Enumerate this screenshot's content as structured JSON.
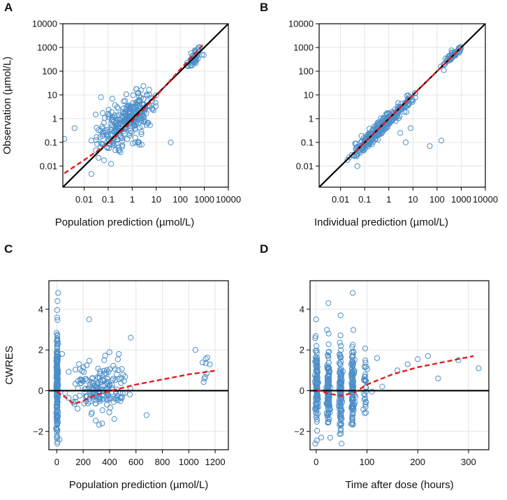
{
  "colors": {
    "points": "#4d8fc8",
    "identity": "#000000",
    "smooth": "#e31a1c",
    "grid": "#e4e4e4",
    "frame": "#000000"
  },
  "chart_data": [
    {
      "panel": "A",
      "type": "scatter",
      "xscale": "log",
      "yscale": "log",
      "xlabel": "Population prediction (µmol/L)",
      "ylabel": "Observation (µmol/L)",
      "xlim": [
        0.0013,
        10000
      ],
      "ylim": [
        0.0013,
        10000
      ],
      "xticks": [
        0.01,
        0.1,
        1,
        10,
        100,
        1000,
        10000
      ],
      "xtick_labels": [
        "0.01",
        "0.1",
        "1",
        "10",
        "100",
        "1000",
        "10000"
      ],
      "yticks": [
        0.01,
        0.1,
        1,
        10,
        100,
        1000,
        10000
      ],
      "ytick_labels": [
        "0.01",
        "0.1",
        "1",
        "10",
        "100",
        "1000",
        "10000"
      ],
      "reference_line": {
        "type": "identity",
        "color": "#000000"
      },
      "trend_line": {
        "color": "#e31a1c",
        "style": "dashed",
        "points": [
          [
            0.0015,
            0.005
          ],
          [
            0.01,
            0.018
          ],
          [
            0.1,
            0.09
          ],
          [
            1,
            0.8
          ],
          [
            10,
            9
          ],
          [
            100,
            120
          ],
          [
            1000,
            1500
          ]
        ]
      },
      "clusters": [
        {
          "x_log": -1.0,
          "y_log": -0.5,
          "sx": 0.35,
          "sy": 0.55,
          "corr": 0.4,
          "n": 70
        },
        {
          "x_log": 0.0,
          "y_log": 0.0,
          "sx": 0.45,
          "sy": 0.55,
          "corr": 0.6,
          "n": 230
        },
        {
          "x_log": 2.6,
          "y_log": 2.6,
          "sx": 0.2,
          "sy": 0.25,
          "corr": 0.8,
          "n": 50
        }
      ],
      "extra_points": [
        [
          0.0015,
          0.14
        ],
        [
          0.004,
          0.4
        ],
        [
          0.02,
          0.12
        ],
        [
          0.05,
          8
        ],
        [
          40,
          0.1
        ],
        [
          2,
          0.08
        ],
        [
          0.03,
          1.5
        ]
      ]
    },
    {
      "panel": "B",
      "type": "scatter",
      "xscale": "log",
      "yscale": "log",
      "xlabel": "Individual prediction (µmol/L)",
      "ylabel": "",
      "xlim": [
        0.0013,
        10000
      ],
      "ylim": [
        0.0013,
        10000
      ],
      "xticks": [
        0.01,
        0.1,
        1,
        10,
        100,
        1000,
        10000
      ],
      "xtick_labels": [
        "0.01",
        "0.1",
        "1",
        "10",
        "100",
        "1000",
        "10000"
      ],
      "yticks": [
        0.01,
        0.1,
        1,
        10,
        100,
        1000,
        10000
      ],
      "ytick_labels": [
        "0.01",
        "0.1",
        "1",
        "10",
        "100",
        "1000",
        "10000"
      ],
      "reference_line": {
        "type": "identity",
        "color": "#000000"
      },
      "trend_line": {
        "color": "#e31a1c",
        "style": "dashed",
        "points": [
          [
            0.04,
            0.04
          ],
          [
            0.1,
            0.1
          ],
          [
            1,
            1
          ],
          [
            10,
            10
          ],
          [
            100,
            100
          ],
          [
            1000,
            1000
          ]
        ]
      },
      "clusters": [
        {
          "x_log": -1.0,
          "y_log": -1.05,
          "sx": 0.3,
          "sy": 0.32,
          "corr": 0.85,
          "n": 80
        },
        {
          "x_log": 0.0,
          "y_log": -0.05,
          "sx": 0.45,
          "sy": 0.45,
          "corr": 0.93,
          "n": 230
        },
        {
          "x_log": 2.6,
          "y_log": 2.6,
          "sx": 0.2,
          "sy": 0.22,
          "corr": 0.92,
          "n": 55
        }
      ],
      "extra_points": [
        [
          0.05,
          0.01
        ],
        [
          0.03,
          0.03
        ],
        [
          50,
          0.07
        ],
        [
          150,
          0.12
        ],
        [
          5,
          0.1
        ],
        [
          8,
          0.4
        ],
        [
          3,
          0.25
        ]
      ]
    },
    {
      "panel": "C",
      "type": "scatter",
      "xscale": "linear",
      "yscale": "linear",
      "xlabel": "Population prediction (µmol/L)",
      "ylabel": "CWRES",
      "xlim": [
        -60,
        1300
      ],
      "ylim": [
        -2.9,
        5.4
      ],
      "xticks": [
        0,
        200,
        400,
        600,
        800,
        1000,
        1200
      ],
      "xtick_labels": [
        "0",
        "200",
        "400",
        "600",
        "800",
        "1000",
        "1200"
      ],
      "yticks": [
        -2,
        0,
        2,
        4
      ],
      "ytick_labels": [
        "−2",
        "0",
        "2",
        "4"
      ],
      "reference_line": {
        "type": "horizontal",
        "y": 0,
        "color": "#000000"
      },
      "trend_line": {
        "color": "#e31a1c",
        "style": "dashed",
        "points": [
          [
            0,
            -0.05
          ],
          [
            60,
            -0.3
          ],
          [
            130,
            -0.65
          ],
          [
            200,
            -0.5
          ],
          [
            300,
            -0.2
          ],
          [
            400,
            -0.02
          ],
          [
            600,
            0.3
          ],
          [
            800,
            0.55
          ],
          [
            1000,
            0.8
          ],
          [
            1220,
            1.0
          ]
        ]
      },
      "clusters": [
        {
          "x_c": 2,
          "x_sd": 3,
          "y_c": 0.2,
          "y_sd": 1.25,
          "n": 230
        },
        {
          "x_c": 320,
          "x_sd": 110,
          "y_c": 0.05,
          "y_sd": 0.75,
          "n": 180
        },
        {
          "x_c": 1120,
          "x_sd": 30,
          "y_c": 1.1,
          "y_sd": 0.3,
          "n": 9
        }
      ],
      "extra_points": [
        [
          10,
          4.8
        ],
        [
          5,
          4.4
        ],
        [
          40,
          1.8
        ],
        [
          245,
          3.5
        ],
        [
          470,
          1.8
        ],
        [
          560,
          2.6
        ],
        [
          680,
          -1.2
        ],
        [
          20,
          -2.4
        ],
        [
          1050,
          2.0
        ]
      ]
    },
    {
      "panel": "D",
      "type": "scatter",
      "xscale": "linear",
      "yscale": "linear",
      "xlabel": "Time after dose (hours)",
      "ylabel": "",
      "xlim": [
        -12,
        340
      ],
      "ylim": [
        -2.9,
        5.4
      ],
      "xticks": [
        0,
        100,
        200,
        300
      ],
      "xtick_labels": [
        "0",
        "100",
        "200",
        "300"
      ],
      "yticks": [
        -2,
        0,
        2,
        4
      ],
      "ytick_labels": [
        "−2",
        "0",
        "2",
        "4"
      ],
      "reference_line": {
        "type": "horizontal",
        "y": 0,
        "color": "#000000"
      },
      "trend_line": {
        "color": "#e31a1c",
        "style": "dashed",
        "points": [
          [
            0,
            0.05
          ],
          [
            25,
            -0.15
          ],
          [
            50,
            -0.25
          ],
          [
            75,
            -0.1
          ],
          [
            100,
            0.3
          ],
          [
            150,
            0.8
          ],
          [
            200,
            1.15
          ],
          [
            250,
            1.4
          ],
          [
            310,
            1.7
          ]
        ]
      },
      "clusters": [
        {
          "x_c": 1,
          "x_sd": 1.5,
          "y_c": 0.1,
          "y_sd": 1.0,
          "n": 110
        },
        {
          "x_c": 24,
          "x_sd": 1.5,
          "y_c": 0.2,
          "y_sd": 1.05,
          "n": 110
        },
        {
          "x_c": 48,
          "x_sd": 1.5,
          "y_c": 0.1,
          "y_sd": 1.0,
          "n": 110
        },
        {
          "x_c": 72,
          "x_sd": 1.5,
          "y_c": 0.1,
          "y_sd": 1.0,
          "n": 110
        },
        {
          "x_c": 96,
          "x_sd": 1.5,
          "y_c": 0.2,
          "y_sd": 0.9,
          "n": 30
        }
      ],
      "extra_points": [
        [
          72,
          4.8
        ],
        [
          24,
          4.3
        ],
        [
          48,
          3.7
        ],
        [
          0,
          3.5
        ],
        [
          120,
          1.6
        ],
        [
          160,
          1.0
        ],
        [
          180,
          1.3
        ],
        [
          200,
          1.55
        ],
        [
          220,
          1.7
        ],
        [
          240,
          0.6
        ],
        [
          280,
          1.5
        ],
        [
          320,
          1.1
        ],
        [
          130,
          0.2
        ],
        [
          110,
          -0.05
        ],
        [
          50,
          -2.6
        ],
        [
          10,
          -2.3
        ]
      ]
    }
  ]
}
